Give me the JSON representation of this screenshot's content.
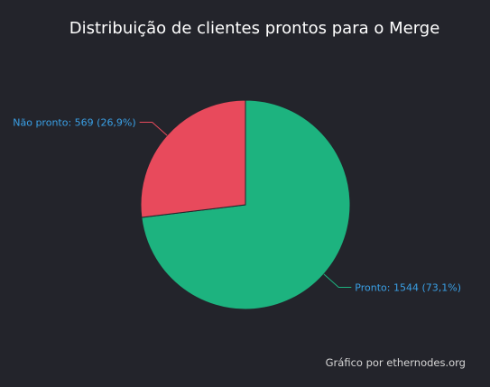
{
  "chart_data": {
    "type": "pie",
    "title": "Distribuição de clientes prontos para o Merge",
    "slices": [
      {
        "name": "Pronto",
        "value": 1544,
        "percent": "73,1%",
        "label": "Pronto: 1544 (73,1%)",
        "color": "#1db37f"
      },
      {
        "name": "Não pronto",
        "value": 569,
        "percent": "26,9%",
        "label": "Não pronto: 569 (26,9%)",
        "color": "#e84a5c"
      }
    ],
    "label_color": "#3aa0e6",
    "start_angle_deg": 0
  },
  "credit": "Gráfico por ethernodes.org"
}
